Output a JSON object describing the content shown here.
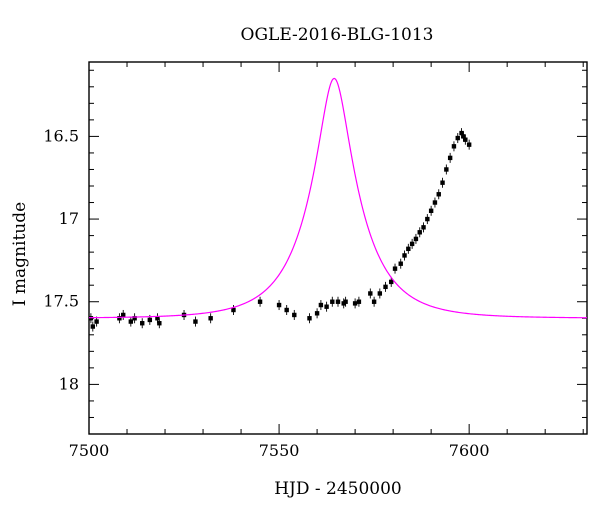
{
  "chart_data": {
    "type": "scatter",
    "title": "OGLE-2016-BLG-1013",
    "xlabel": "HJD - 2450000",
    "ylabel": "I magnitude",
    "xlim": [
      7500,
      7631
    ],
    "ylim": [
      18.3,
      16.05
    ],
    "y_inverted": true,
    "x_ticks": [
      7500,
      7550,
      7600
    ],
    "y_ticks": [
      16.5,
      17,
      17.5,
      18
    ],
    "y_tick_labels": [
      "16.5",
      "17",
      "17.5",
      "18"
    ],
    "grid": false,
    "colors": {
      "points": "#000000",
      "model": "#ff00ff",
      "axes": "#000000"
    },
    "series": [
      {
        "type": "scatter",
        "points": [
          [
            7500.5,
            17.6
          ],
          [
            7501.0,
            17.65
          ],
          [
            7502.0,
            17.62
          ],
          [
            7508.0,
            17.6
          ],
          [
            7509.0,
            17.58
          ],
          [
            7511.0,
            17.62
          ],
          [
            7512.0,
            17.6
          ],
          [
            7514.0,
            17.63
          ],
          [
            7516.0,
            17.61
          ],
          [
            7518.0,
            17.6
          ],
          [
            7518.5,
            17.63
          ],
          [
            7525.0,
            17.58
          ],
          [
            7528.0,
            17.62
          ],
          [
            7532.0,
            17.6
          ],
          [
            7538.0,
            17.55
          ],
          [
            7545.0,
            17.5
          ],
          [
            7550.0,
            17.52
          ],
          [
            7552.0,
            17.55
          ],
          [
            7554.0,
            17.58
          ],
          [
            7558.0,
            17.6
          ],
          [
            7560.0,
            17.57
          ],
          [
            7561.0,
            17.52
          ],
          [
            7562.5,
            17.53
          ],
          [
            7564.0,
            17.5
          ],
          [
            7565.5,
            17.5
          ],
          [
            7567.0,
            17.51
          ],
          [
            7567.5,
            17.5
          ],
          [
            7570.0,
            17.51
          ],
          [
            7571.0,
            17.5
          ],
          [
            7574.0,
            17.45
          ],
          [
            7575.0,
            17.5
          ],
          [
            7576.5,
            17.45
          ],
          [
            7578.0,
            17.41
          ],
          [
            7579.5,
            17.38
          ],
          [
            7580.5,
            17.3
          ],
          [
            7582.0,
            17.27
          ],
          [
            7583.0,
            17.22
          ],
          [
            7584.0,
            17.18
          ],
          [
            7585.0,
            17.15
          ],
          [
            7586.0,
            17.12
          ],
          [
            7587.0,
            17.08
          ],
          [
            7588.0,
            17.05
          ],
          [
            7589.0,
            17.0
          ],
          [
            7590.0,
            16.95
          ],
          [
            7591.0,
            16.9
          ],
          [
            7592.0,
            16.85
          ],
          [
            7593.0,
            16.78
          ],
          [
            7594.0,
            16.7
          ],
          [
            7595.0,
            16.63
          ],
          [
            7596.0,
            16.56
          ],
          [
            7597.0,
            16.51
          ],
          [
            7598.0,
            16.48
          ],
          [
            7598.5,
            16.5
          ],
          [
            7599.0,
            16.52
          ],
          [
            7600.0,
            16.55
          ]
        ]
      },
      {
        "type": "line",
        "model": "PSPL",
        "params": {
          "t0": 7564.5,
          "tE": 13.5,
          "u0": 0.27,
          "baseline": 17.6
        }
      }
    ]
  }
}
